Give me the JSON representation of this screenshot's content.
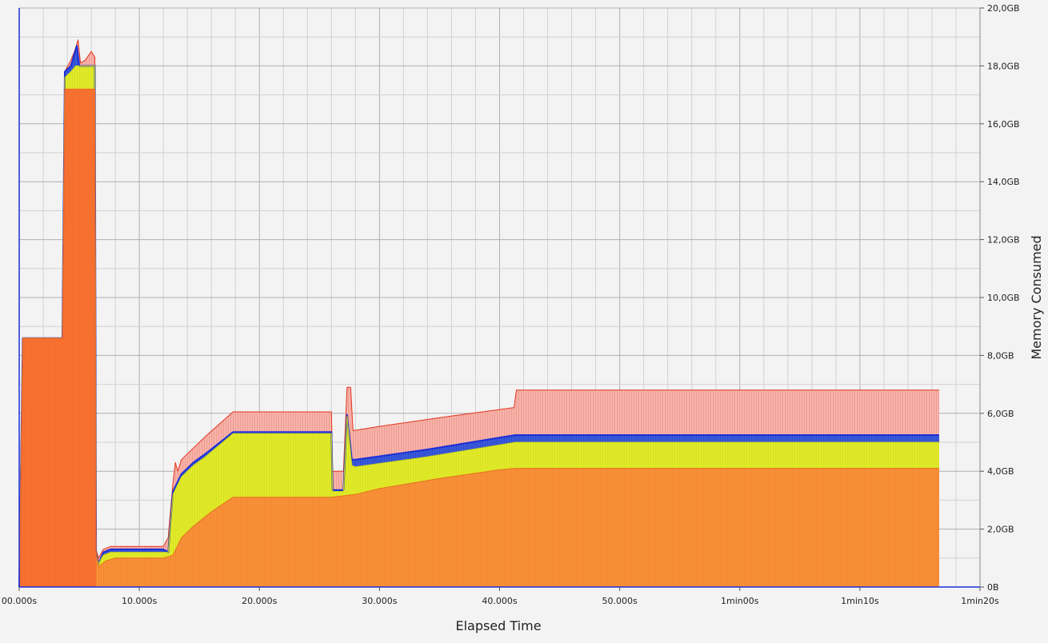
{
  "chart_data": {
    "type": "area",
    "xlabel": "Elapsed Time",
    "ylabel": "Memory Consumed",
    "x_unit": "s",
    "xlim": [
      0,
      80
    ],
    "ylim": [
      0,
      20
    ],
    "x_ticks": [
      0,
      10,
      20,
      30,
      40,
      50,
      60,
      70,
      80
    ],
    "x_tick_labels": [
      "00.000s",
      "10.000s",
      "20.000s",
      "30.000s",
      "40.000s",
      "50.000s",
      "1min00s",
      "1min10s",
      "1min20s"
    ],
    "y_ticks": [
      0,
      2,
      4,
      6,
      8,
      10,
      12,
      14,
      16,
      18,
      20
    ],
    "y_tick_labels": [
      "0B",
      "2,0GB",
      "4,0GB",
      "6,0GB",
      "8,0GB",
      "10,0GB",
      "12,0GB",
      "14,0GB",
      "16,0GB",
      "18,0GB",
      "20,0GB"
    ],
    "y_unit": "GB",
    "grid": true,
    "legend": "none",
    "colors": {
      "orange": "#f7913a",
      "early_orange": "#f66a2e",
      "yellow": "#e0ea2a",
      "blue_band": "#3a5ad8",
      "blue_line": "#1b2fd6",
      "red_band": "#f5b3aa",
      "red_line": "#e2361f",
      "grid": "#b8b8b8",
      "axis": "#1b2fd6"
    },
    "series": [
      {
        "values": [
          [
            0,
            0
          ],
          [
            0.3,
            8.6
          ],
          [
            3.6,
            8.6
          ],
          [
            3.8,
            17.2
          ],
          [
            6.3,
            17.2
          ],
          [
            6.4,
            1.2
          ],
          [
            6.6,
            0.7
          ],
          [
            7.2,
            0.9
          ],
          [
            8.0,
            1.0
          ],
          [
            12.0,
            1.0
          ],
          [
            12.8,
            1.1
          ],
          [
            13.5,
            1.7
          ],
          [
            14.5,
            2.1
          ],
          [
            16.0,
            2.6
          ],
          [
            17.8,
            3.1
          ],
          [
            26.0,
            3.1
          ],
          [
            28.0,
            3.2
          ],
          [
            30.0,
            3.4
          ],
          [
            35.0,
            3.75
          ],
          [
            40.0,
            4.05
          ],
          [
            41.3,
            4.1
          ],
          [
            76.6,
            4.1
          ],
          [
            76.6,
            0
          ]
        ]
      },
      {
        "values": [
          [
            0,
            0
          ],
          [
            0.3,
            8.6
          ],
          [
            3.6,
            8.6
          ],
          [
            3.8,
            17.6
          ],
          [
            4.3,
            17.8
          ],
          [
            4.7,
            18.0
          ],
          [
            6.3,
            18.0
          ],
          [
            6.4,
            1.2
          ],
          [
            6.6,
            0.8
          ],
          [
            7.0,
            1.1
          ],
          [
            7.6,
            1.2
          ],
          [
            12.0,
            1.2
          ],
          [
            12.4,
            1.2
          ],
          [
            12.8,
            3.2
          ],
          [
            13.5,
            3.8
          ],
          [
            14.5,
            4.2
          ],
          [
            15.5,
            4.5
          ],
          [
            17.8,
            5.3
          ],
          [
            26.0,
            5.3
          ],
          [
            26.1,
            3.3
          ],
          [
            27.0,
            3.3
          ],
          [
            27.3,
            5.9
          ],
          [
            27.7,
            4.2
          ],
          [
            28.0,
            4.15
          ],
          [
            34.0,
            4.5
          ],
          [
            41.3,
            5.0
          ],
          [
            76.6,
            5.0
          ],
          [
            76.6,
            0
          ]
        ]
      },
      {
        "values": [
          [
            0,
            0
          ],
          [
            0.3,
            8.6
          ],
          [
            3.6,
            8.6
          ],
          [
            3.8,
            17.8
          ],
          [
            4.3,
            18.0
          ],
          [
            4.8,
            18.7
          ],
          [
            5.0,
            18.0
          ],
          [
            6.3,
            18.0
          ],
          [
            6.4,
            1.2
          ],
          [
            6.6,
            0.8
          ],
          [
            7.0,
            1.2
          ],
          [
            7.6,
            1.3
          ],
          [
            12.0,
            1.3
          ],
          [
            12.4,
            1.2
          ],
          [
            12.8,
            3.3
          ],
          [
            13.5,
            3.9
          ],
          [
            14.5,
            4.3
          ],
          [
            15.5,
            4.6
          ],
          [
            17.8,
            5.35
          ],
          [
            26.0,
            5.35
          ],
          [
            26.1,
            3.35
          ],
          [
            27.0,
            3.35
          ],
          [
            27.3,
            5.95
          ],
          [
            27.7,
            4.4
          ],
          [
            28.0,
            4.4
          ],
          [
            34.0,
            4.75
          ],
          [
            41.3,
            5.25
          ],
          [
            76.6,
            5.25
          ],
          [
            76.6,
            0
          ]
        ]
      },
      {
        "values": [
          [
            0,
            0
          ],
          [
            0.3,
            8.6
          ],
          [
            3.6,
            8.6
          ],
          [
            3.8,
            17.8
          ],
          [
            4.3,
            18.2
          ],
          [
            4.6,
            18.5
          ],
          [
            4.9,
            18.9
          ],
          [
            5.1,
            18.1
          ],
          [
            5.5,
            18.2
          ],
          [
            6.0,
            18.5
          ],
          [
            6.3,
            18.3
          ],
          [
            6.4,
            1.3
          ],
          [
            6.6,
            1.0
          ],
          [
            7.0,
            1.3
          ],
          [
            7.6,
            1.4
          ],
          [
            12.0,
            1.4
          ],
          [
            12.4,
            1.7
          ],
          [
            12.8,
            3.6
          ],
          [
            13.0,
            4.3
          ],
          [
            13.2,
            4.0
          ],
          [
            13.5,
            4.4
          ],
          [
            14.5,
            4.8
          ],
          [
            15.5,
            5.2
          ],
          [
            17.8,
            6.05
          ],
          [
            26.0,
            6.05
          ],
          [
            26.1,
            4.0
          ],
          [
            27.0,
            4.0
          ],
          [
            27.3,
            6.9
          ],
          [
            27.6,
            6.9
          ],
          [
            27.8,
            5.4
          ],
          [
            30.0,
            5.55
          ],
          [
            35.0,
            5.85
          ],
          [
            41.2,
            6.2
          ],
          [
            41.4,
            6.8
          ],
          [
            76.6,
            6.8
          ],
          [
            76.6,
            0
          ]
        ]
      }
    ]
  }
}
